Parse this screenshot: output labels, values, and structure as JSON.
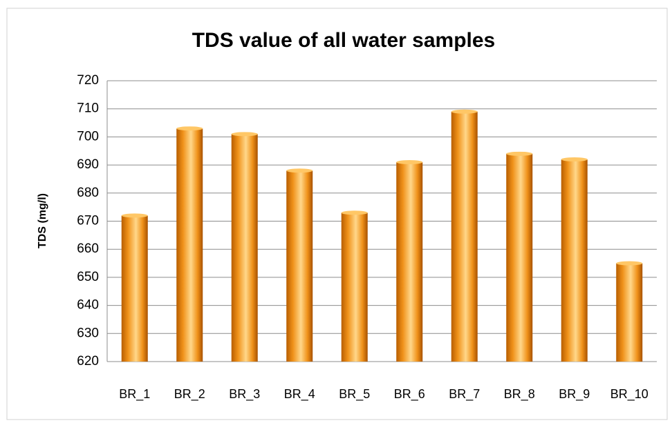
{
  "chart_data": {
    "type": "bar",
    "title": "TDS value of all water samples",
    "y_label": "TDS (mg/l)",
    "categories": [
      "BR_1",
      "BR_2",
      "BR_3",
      "BR_4",
      "BR_5",
      "BR_6",
      "BR_7",
      "BR_8",
      "BR_9",
      "BR_10"
    ],
    "values": [
      672,
      703,
      701,
      688,
      673,
      691,
      709,
      694,
      692,
      655
    ],
    "color": "#f0921a",
    "ylim": [
      620,
      720
    ],
    "yticks": [
      620,
      630,
      640,
      650,
      660,
      670,
      680,
      690,
      700,
      710,
      720
    ],
    "grid": true
  }
}
